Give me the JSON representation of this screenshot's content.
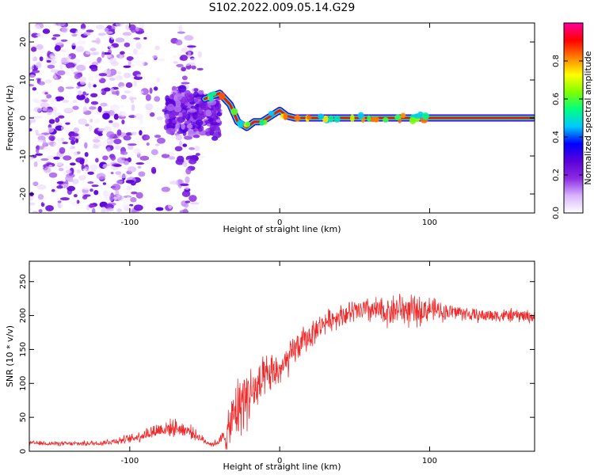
{
  "figure_title": "S102.2022.009.05.14.G29",
  "chart_data": [
    {
      "type": "heatmap",
      "xlabel": "Height of straight line (km)",
      "ylabel": "Frequency (Hz)",
      "xlim": [
        -167,
        170
      ],
      "ylim": [
        -25,
        25
      ],
      "xticks": [
        -100,
        0,
        100
      ],
      "xtick_labels": [
        "-100",
        "0",
        "100"
      ],
      "yticks": [
        -20,
        -10,
        0,
        10,
        20
      ],
      "ytick_labels": [
        "-20",
        "-10",
        "0",
        "10",
        "20"
      ],
      "colorbar": {
        "label": "Normalized spectral amplitude",
        "range": [
          0,
          1
        ],
        "ticks": [
          0.0,
          0.2,
          0.4,
          0.6,
          0.8
        ],
        "tick_labels": [
          "0.0",
          "0.2",
          "0.4",
          "0.6",
          "0.8"
        ],
        "colors": [
          "#ffffff",
          "#d8b4fe",
          "#8b2be2",
          "#5b00d9",
          "#0000ff",
          "#00c8ff",
          "#00ff80",
          "#80ff00",
          "#ffff00",
          "#ff8000",
          "#ff0000",
          "#ff00a0"
        ]
      },
      "ridge": {
        "x": [
          -50,
          -40,
          -33,
          -28,
          -22,
          -17,
          -12,
          -6,
          0,
          5,
          10,
          50,
          100,
          170
        ],
        "y": [
          5,
          6.5,
          3.5,
          -1,
          -2.5,
          -1,
          -1,
          0.5,
          2,
          0.5,
          0,
          0,
          0,
          0
        ],
        "peak_level": 0.9
      },
      "noise_regions": [
        {
          "x": [
            -167,
            -50
          ],
          "y": [
            -25,
            25
          ],
          "level": "scattered"
        },
        {
          "x": [
            -75,
            -40
          ],
          "y": [
            -6,
            8
          ],
          "level": "dense"
        }
      ],
      "grid": false,
      "legend": "none"
    },
    {
      "type": "line",
      "xlabel": "Height of straight line (km)",
      "ylabel": "SNR (10 * v/v)",
      "xlim": [
        -167,
        170
      ],
      "ylim": [
        0,
        280
      ],
      "xticks": [
        -100,
        0,
        100
      ],
      "xtick_labels": [
        "-100",
        "0",
        "100"
      ],
      "yticks": [
        0,
        50,
        100,
        150,
        200,
        250
      ],
      "ytick_labels": [
        "0",
        "50",
        "100",
        "150",
        "200",
        "250"
      ],
      "series": [
        {
          "color": "#ee2a2a",
          "x": [
            -167,
            -140,
            -120,
            -100,
            -90,
            -80,
            -70,
            -60,
            -50,
            -45,
            -40,
            -35,
            -30,
            -25,
            -20,
            -15,
            -10,
            -5,
            0,
            5,
            10,
            15,
            20,
            25,
            30,
            40,
            50,
            60,
            70,
            80,
            90,
            100,
            110,
            120,
            130,
            140,
            150,
            160,
            170
          ],
          "y": [
            12,
            11,
            12,
            18,
            25,
            32,
            35,
            30,
            15,
            10,
            15,
            25,
            55,
            75,
            85,
            90,
            105,
            115,
            120,
            130,
            150,
            160,
            170,
            180,
            190,
            200,
            205,
            208,
            205,
            210,
            205,
            210,
            205,
            205,
            200,
            200,
            200,
            200,
            198
          ],
          "noise_amplitude": [
            4,
            4,
            5,
            8,
            12,
            15,
            15,
            12,
            6,
            5,
            8,
            30,
            55,
            60,
            55,
            45,
            40,
            35,
            30,
            30,
            28,
            26,
            24,
            22,
            20,
            20,
            22,
            24,
            26,
            30,
            28,
            22,
            16,
            14,
            12,
            12,
            12,
            12,
            12
          ]
        }
      ],
      "grid": false,
      "legend": "none"
    }
  ]
}
